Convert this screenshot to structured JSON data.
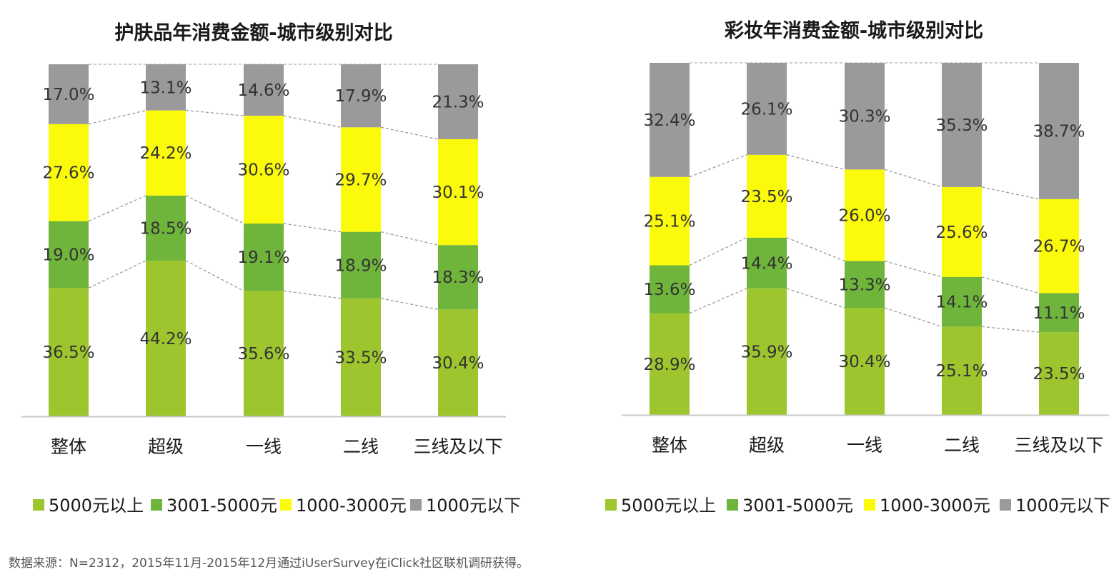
{
  "colors": {
    "above_5000": "#9dc62e",
    "r3001_5000": "#6fb53c",
    "r1000_3000": "#fafa0a",
    "below_1000": "#9a999b",
    "connector": "#9a9a9a",
    "axis": "#c8c8c8"
  },
  "legend": [
    "5000元以上",
    "3001-5000元",
    "1000-3000元",
    "1000元以下"
  ],
  "chart_data": [
    {
      "type": "bar",
      "stacked": true,
      "title": "护肤品年消费金额-城市级别对比",
      "categories": [
        "整体",
        "超级",
        "一线",
        "二线",
        "三线及以下"
      ],
      "ylim": [
        0,
        100
      ],
      "series": [
        {
          "name": "5000元以上",
          "values": [
            36.5,
            44.2,
            35.6,
            33.5,
            30.4
          ],
          "labels": [
            "36.5%",
            "44.2%",
            "35.6%",
            "33.5%",
            "30.4%"
          ]
        },
        {
          "name": "3001-5000元",
          "values": [
            19.0,
            18.5,
            19.1,
            18.9,
            18.3
          ],
          "labels": [
            "19.0%",
            "18.5%",
            "19.1%",
            "18.9%",
            "18.3%"
          ]
        },
        {
          "name": "1000-3000元",
          "values": [
            27.6,
            24.2,
            30.6,
            29.7,
            30.1
          ],
          "labels": [
            "27.6%",
            "24.2%",
            "30.6%",
            "29.7%",
            "30.1%"
          ]
        },
        {
          "name": "1000元以下",
          "values": [
            17.0,
            13.1,
            14.6,
            17.9,
            21.3
          ],
          "labels": [
            "17.0%",
            "13.1%",
            "14.6%",
            "17.9%",
            "21.3%"
          ]
        }
      ]
    },
    {
      "type": "bar",
      "stacked": true,
      "title": "彩妆年消费金额-城市级别对比",
      "categories": [
        "整体",
        "超级",
        "一线",
        "二线",
        "三线及以下"
      ],
      "ylim": [
        0,
        100
      ],
      "series": [
        {
          "name": "5000元以上",
          "values": [
            28.9,
            35.9,
            30.4,
            25.1,
            23.5
          ],
          "labels": [
            "28.9%",
            "35.9%",
            "30.4%",
            "25.1%",
            "23.5%"
          ]
        },
        {
          "name": "3001-5000元",
          "values": [
            13.6,
            14.4,
            13.3,
            14.1,
            11.1
          ],
          "labels": [
            "13.6%",
            "14.4%",
            "13.3%",
            "14.1%",
            "11.1%"
          ]
        },
        {
          "name": "1000-3000元",
          "values": [
            25.1,
            23.5,
            26.0,
            25.6,
            26.7
          ],
          "labels": [
            "25.1%",
            "23.5%",
            "26.0%",
            "25.6%",
            "26.7%"
          ]
        },
        {
          "name": "1000元以下",
          "values": [
            32.4,
            26.1,
            30.3,
            35.3,
            38.7
          ],
          "labels": [
            "32.4%",
            "26.1%",
            "30.3%",
            "35.3%",
            "38.7%"
          ]
        }
      ]
    }
  ],
  "footnote": "数据来源：N=2312，2015年11月-2015年12月通过iUserSurvey在iClick社区联机调研获得。"
}
